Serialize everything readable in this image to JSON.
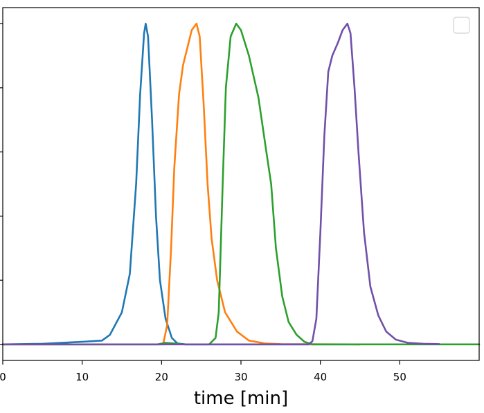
{
  "chart_data": {
    "type": "line",
    "title": "",
    "xlabel": "time [min]",
    "ylabel": "",
    "xlim": [
      0,
      60
    ],
    "ylim": [
      -0.05,
      1.05
    ],
    "grid": false,
    "legend": {
      "position": "top-right",
      "entries": []
    },
    "x_ticks": [
      0,
      10,
      20,
      30,
      40,
      50
    ],
    "x_tick_labels": [
      "0",
      "10",
      "20",
      "30",
      "40",
      "50"
    ],
    "y_ticks": [
      0.0,
      0.2,
      0.4,
      0.6,
      0.8,
      1.0
    ],
    "series": [
      {
        "color": "#1f77b4",
        "points": [
          [
            0,
            0
          ],
          [
            5,
            0.002
          ],
          [
            10,
            0.008
          ],
          [
            12.5,
            0.012
          ],
          [
            13.5,
            0.03
          ],
          [
            15,
            0.1
          ],
          [
            16,
            0.22
          ],
          [
            16.8,
            0.5
          ],
          [
            17.3,
            0.78
          ],
          [
            17.8,
            0.97
          ],
          [
            18,
            1.0
          ],
          [
            18.3,
            0.96
          ],
          [
            18.8,
            0.7
          ],
          [
            19.3,
            0.4
          ],
          [
            19.8,
            0.2
          ],
          [
            20.5,
            0.08
          ],
          [
            21.3,
            0.02
          ],
          [
            22,
            0.003
          ],
          [
            23,
            0
          ],
          [
            45,
            0
          ]
        ]
      },
      {
        "color": "#ff7f0e",
        "points": [
          [
            0,
            0
          ],
          [
            20.2,
            0
          ],
          [
            20.7,
            0.06
          ],
          [
            21.2,
            0.3
          ],
          [
            21.6,
            0.55
          ],
          [
            22.2,
            0.78
          ],
          [
            22.7,
            0.87
          ],
          [
            23.3,
            0.93
          ],
          [
            23.8,
            0.98
          ],
          [
            24.4,
            1.0
          ],
          [
            24.8,
            0.96
          ],
          [
            25.3,
            0.75
          ],
          [
            25.8,
            0.5
          ],
          [
            26.3,
            0.33
          ],
          [
            27,
            0.2
          ],
          [
            28,
            0.1
          ],
          [
            29.5,
            0.04
          ],
          [
            31,
            0.012
          ],
          [
            33,
            0.003
          ],
          [
            35,
            0.001
          ],
          [
            45,
            0
          ]
        ]
      },
      {
        "color": "#2ca02c",
        "points": [
          [
            0,
            0
          ],
          [
            19.5,
            0
          ],
          [
            20.5,
            0.005
          ],
          [
            21.5,
            0.003
          ],
          [
            23,
            0
          ],
          [
            26,
            0
          ],
          [
            26.8,
            0.02
          ],
          [
            27.2,
            0.1
          ],
          [
            27.7,
            0.5
          ],
          [
            28.1,
            0.8
          ],
          [
            28.7,
            0.96
          ],
          [
            29.4,
            1.0
          ],
          [
            30,
            0.98
          ],
          [
            31,
            0.9
          ],
          [
            32.2,
            0.77
          ],
          [
            33.2,
            0.6
          ],
          [
            33.8,
            0.5
          ],
          [
            34.4,
            0.3
          ],
          [
            35.2,
            0.15
          ],
          [
            36,
            0.07
          ],
          [
            37,
            0.03
          ],
          [
            38,
            0.008
          ],
          [
            39,
            0
          ],
          [
            60,
            0
          ]
        ]
      },
      {
        "color": "#7050a8",
        "points": [
          [
            0,
            0
          ],
          [
            38.5,
            0
          ],
          [
            39,
            0.01
          ],
          [
            39.5,
            0.08
          ],
          [
            40,
            0.35
          ],
          [
            40.5,
            0.65
          ],
          [
            41,
            0.85
          ],
          [
            41.5,
            0.9
          ],
          [
            42.2,
            0.94
          ],
          [
            42.8,
            0.98
          ],
          [
            43.4,
            1.0
          ],
          [
            43.8,
            0.97
          ],
          [
            44.3,
            0.8
          ],
          [
            44.8,
            0.6
          ],
          [
            45.5,
            0.35
          ],
          [
            46.3,
            0.18
          ],
          [
            47.3,
            0.09
          ],
          [
            48.3,
            0.04
          ],
          [
            49.5,
            0.015
          ],
          [
            51,
            0.005
          ],
          [
            53,
            0.002
          ],
          [
            55,
            0.001
          ]
        ]
      }
    ]
  }
}
